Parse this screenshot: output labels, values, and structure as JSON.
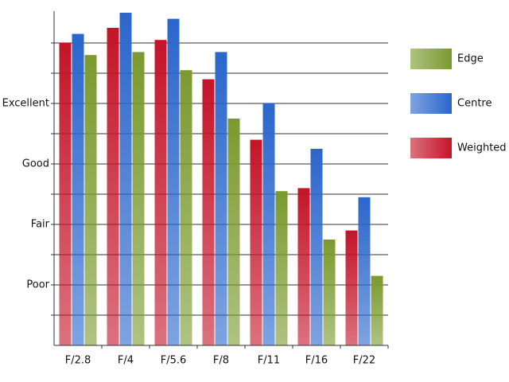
{
  "chart_data": {
    "type": "bar",
    "categories": [
      "F/2.8",
      "F/4",
      "F/5.6",
      "F/8",
      "F/11",
      "F/16",
      "F/22"
    ],
    "series": [
      {
        "name": "Weighted",
        "color": "#c41428",
        "values": [
          10.0,
          10.5,
          10.1,
          8.8,
          6.8,
          5.2,
          3.8
        ]
      },
      {
        "name": "Centre",
        "color": "#2a66cc",
        "values": [
          10.3,
          11.0,
          10.8,
          9.7,
          8.0,
          6.5,
          4.9
        ]
      },
      {
        "name": "Edge",
        "color": "#7a9a2e",
        "values": [
          9.6,
          9.7,
          9.1,
          7.5,
          5.1,
          3.5,
          2.3
        ]
      }
    ],
    "ylim": [
      0,
      11
    ],
    "yticks": [
      {
        "value": 2,
        "label": "Poor"
      },
      {
        "value": 4,
        "label": "Fair"
      },
      {
        "value": 6,
        "label": "Good"
      },
      {
        "value": 8,
        "label": "Excellent"
      }
    ],
    "minor_yticks": [
      1,
      3,
      5,
      7,
      9,
      10
    ],
    "grid": true
  }
}
